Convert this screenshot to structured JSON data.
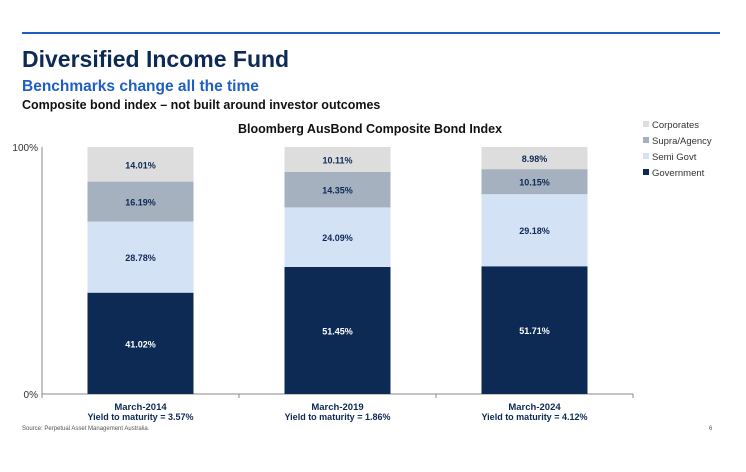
{
  "header": {
    "title": "Diversified Income Fund",
    "subtitle": "Benchmarks change all the time",
    "tagline": "Composite bond index – not built around investor outcomes"
  },
  "footer": {
    "source": "Source: Perpetual Asset Management Australia.",
    "page": "6"
  },
  "chart_data": {
    "type": "bar",
    "stacked": true,
    "title": "Bloomberg AusBond Composite Bond Index",
    "categories": [
      "March-2014",
      "March-2019",
      "March-2024"
    ],
    "subcategories": [
      "Yield to maturity = 3.57%",
      "Yield to maturity = 1.86%",
      "Yield to maturity = 4.12%"
    ],
    "ylim": [
      0,
      100
    ],
    "yticks": [
      "0%",
      "100%"
    ],
    "legend_position": "top-right",
    "series": [
      {
        "name": "Government",
        "color": "#0d2a55",
        "values": [
          41.02,
          51.45,
          51.71
        ],
        "labels": [
          "41.02%",
          "51.45%",
          "51.71%"
        ]
      },
      {
        "name": "Semi Govt",
        "color": "#d4e2f6",
        "values": [
          28.78,
          24.09,
          29.18
        ],
        "labels": [
          "28.78%",
          "24.09%",
          "29.18%"
        ]
      },
      {
        "name": "Supra/Agency",
        "color": "#a6b1bf",
        "values": [
          16.19,
          14.35,
          10.15
        ],
        "labels": [
          "16.19%",
          "14.35%",
          "10.15%"
        ]
      },
      {
        "name": "Corporates",
        "color": "#dddddd",
        "values": [
          14.01,
          10.11,
          8.98
        ],
        "labels": [
          "14.01%",
          "10.11%",
          "8.98%"
        ]
      }
    ]
  }
}
